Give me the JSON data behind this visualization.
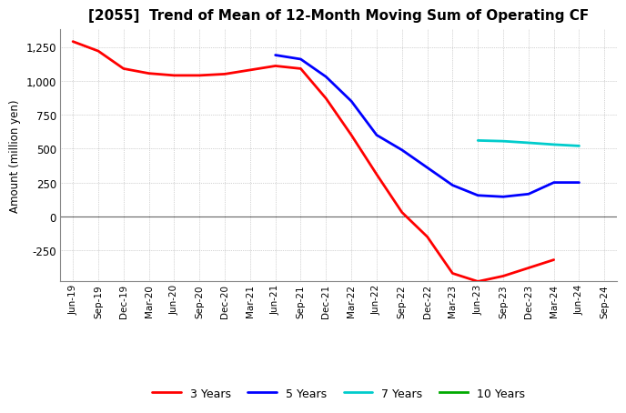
{
  "title": "[2055]  Trend of Mean of 12-Month Moving Sum of Operating CF",
  "ylabel": "Amount (million yen)",
  "background_color": "#ffffff",
  "grid_color": "#aaaaaa",
  "x_labels": [
    "Jun-19",
    "Sep-19",
    "Dec-19",
    "Mar-20",
    "Jun-20",
    "Sep-20",
    "Dec-20",
    "Mar-21",
    "Jun-21",
    "Sep-21",
    "Dec-21",
    "Mar-22",
    "Jun-22",
    "Sep-22",
    "Dec-22",
    "Mar-23",
    "Jun-23",
    "Sep-23",
    "Dec-23",
    "Mar-24",
    "Jun-24",
    "Sep-24"
  ],
  "ylim": [
    -480,
    1380
  ],
  "yticks": [
    -250,
    0,
    250,
    500,
    750,
    1000,
    1250
  ],
  "series": {
    "3 Years": {
      "color": "#ff0000",
      "x_indices": [
        0,
        1,
        2,
        3,
        4,
        5,
        6,
        7,
        8,
        9,
        10,
        11,
        12,
        13,
        14,
        15,
        16,
        17,
        18,
        19
      ],
      "values": [
        1290,
        1220,
        1090,
        1055,
        1040,
        1040,
        1050,
        1080,
        1110,
        1090,
        870,
        600,
        310,
        30,
        -150,
        -420,
        -480,
        -440,
        -380,
        -320
      ]
    },
    "5 Years": {
      "color": "#0000ff",
      "x_indices": [
        8,
        9,
        10,
        11,
        12,
        13,
        14,
        15,
        16,
        17,
        18,
        19,
        20
      ],
      "values": [
        1190,
        1160,
        1030,
        850,
        600,
        490,
        360,
        230,
        155,
        145,
        165,
        250,
        250
      ]
    },
    "7 Years": {
      "color": "#00cccc",
      "x_indices": [
        16,
        17,
        18,
        19,
        20
      ],
      "values": [
        560,
        555,
        543,
        530,
        520
      ]
    },
    "10 Years": {
      "color": "#00aa00",
      "x_indices": [],
      "values": []
    }
  },
  "legend": {
    "entries": [
      "3 Years",
      "5 Years",
      "7 Years",
      "10 Years"
    ],
    "colors": [
      "#ff0000",
      "#0000ff",
      "#00cccc",
      "#00aa00"
    ]
  }
}
